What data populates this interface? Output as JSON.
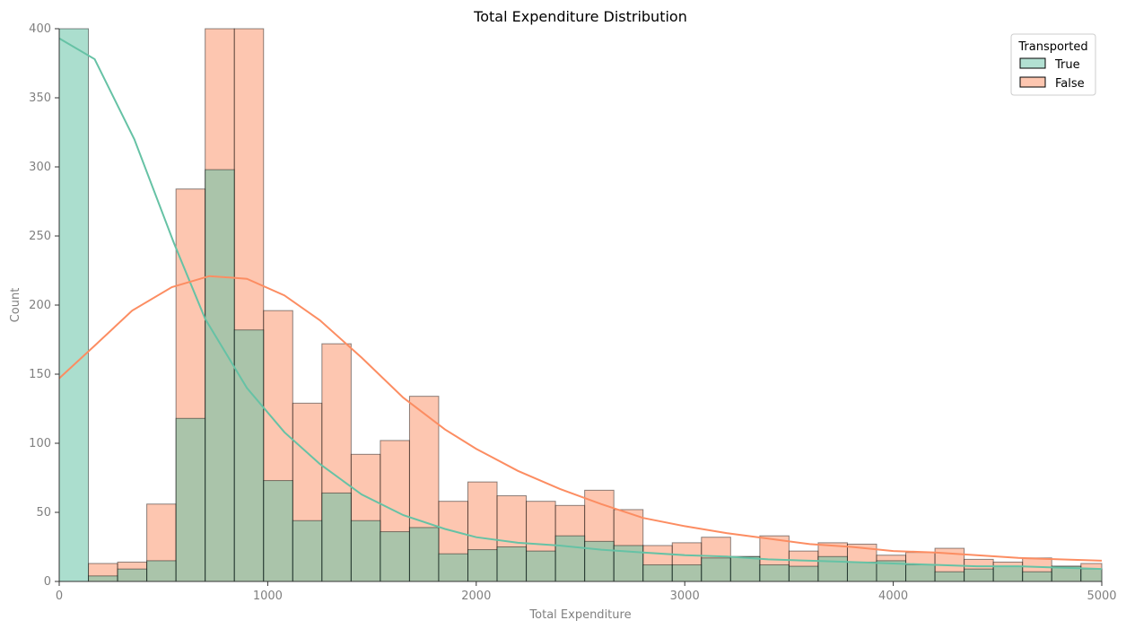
{
  "chart_data": {
    "type": "bar",
    "title": "Total Expenditure Distribution",
    "xlabel": "Total Expenditure",
    "ylabel": "Count",
    "xlim": [
      0,
      5000
    ],
    "ylim": [
      0,
      400
    ],
    "xticks": [
      0,
      1000,
      2000,
      3000,
      4000,
      5000
    ],
    "yticks": [
      0,
      50,
      100,
      150,
      200,
      250,
      300,
      350,
      400
    ],
    "bin_edges": [
      0,
      140,
      280,
      420,
      560,
      700,
      840,
      980,
      1120,
      1260,
      1400,
      1540,
      1680,
      1820,
      1960,
      2100,
      2240,
      2380,
      2520,
      2660,
      2800,
      2940,
      3080,
      3220,
      3360,
      3500,
      3640,
      3780,
      3920,
      4060,
      4200,
      4340,
      4480,
      4620,
      4760,
      4900,
      5040
    ],
    "legend": {
      "title": "Transported",
      "placement": "top-right"
    },
    "grid": false,
    "series": [
      {
        "name": "True",
        "color": "#66c2a5",
        "values": [
          400,
          4,
          9,
          15,
          118,
          298,
          182,
          73,
          44,
          64,
          44,
          36,
          39,
          20,
          23,
          25,
          22,
          33,
          29,
          26,
          12,
          12,
          17,
          18,
          12,
          11,
          18,
          14,
          15,
          12,
          7,
          9,
          11,
          7,
          11,
          9
        ],
        "kde": [
          [
            0,
            393
          ],
          [
            170,
            378
          ],
          [
            360,
            320
          ],
          [
            550,
            245
          ],
          [
            700,
            190
          ],
          [
            900,
            140
          ],
          [
            1080,
            108
          ],
          [
            1250,
            85
          ],
          [
            1450,
            63
          ],
          [
            1650,
            48
          ],
          [
            1850,
            38
          ],
          [
            2000,
            32
          ],
          [
            2200,
            28
          ],
          [
            2400,
            26
          ],
          [
            2600,
            23
          ],
          [
            2800,
            21
          ],
          [
            3000,
            19
          ],
          [
            3200,
            18
          ],
          [
            3400,
            16
          ],
          [
            3600,
            15
          ],
          [
            3800,
            14
          ],
          [
            4000,
            13
          ],
          [
            4200,
            12
          ],
          [
            4400,
            11
          ],
          [
            4600,
            11
          ],
          [
            4800,
            10
          ],
          [
            5000,
            9
          ]
        ]
      },
      {
        "name": "False",
        "color": "#fc8d62",
        "values": [
          0,
          13,
          14,
          56,
          284,
          400,
          400,
          196,
          129,
          172,
          92,
          102,
          134,
          58,
          72,
          62,
          58,
          55,
          66,
          52,
          26,
          28,
          32,
          18,
          33,
          22,
          28,
          27,
          19,
          21,
          24,
          16,
          14,
          17,
          11,
          13
        ],
        "kde": [
          [
            0,
            147
          ],
          [
            180,
            172
          ],
          [
            350,
            196
          ],
          [
            540,
            213
          ],
          [
            720,
            221
          ],
          [
            900,
            219
          ],
          [
            1080,
            207
          ],
          [
            1250,
            189
          ],
          [
            1450,
            162
          ],
          [
            1650,
            133
          ],
          [
            1850,
            110
          ],
          [
            2000,
            96
          ],
          [
            2200,
            80
          ],
          [
            2400,
            67
          ],
          [
            2600,
            56
          ],
          [
            2800,
            46
          ],
          [
            3000,
            40
          ],
          [
            3200,
            35
          ],
          [
            3400,
            31
          ],
          [
            3600,
            27
          ],
          [
            3800,
            25
          ],
          [
            4000,
            22
          ],
          [
            4200,
            21
          ],
          [
            4400,
            19
          ],
          [
            4600,
            17
          ],
          [
            4800,
            16
          ],
          [
            5000,
            15
          ]
        ]
      }
    ]
  }
}
